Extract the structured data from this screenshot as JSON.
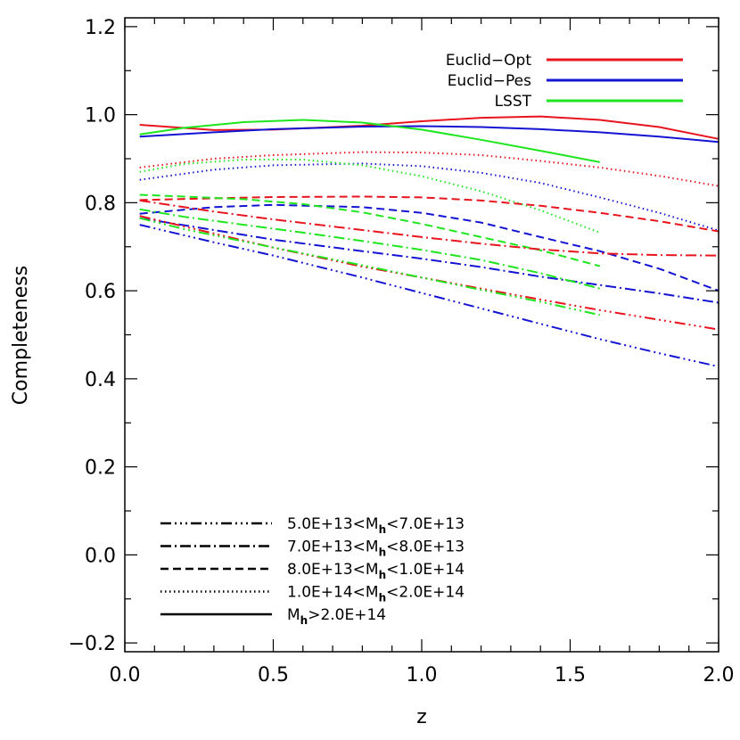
{
  "chart_data": {
    "type": "line",
    "xlabel": "z",
    "ylabel": "Completeness",
    "xlim": [
      0.0,
      2.0
    ],
    "ylim": [
      -0.22,
      1.22
    ],
    "xticks": [
      0.0,
      0.5,
      1.0,
      1.5,
      2.0
    ],
    "xtick_labels": [
      "0.0",
      "0.5",
      "1.0",
      "1.5",
      "2.0"
    ],
    "yticks": [
      -0.2,
      0.0,
      0.2,
      0.4,
      0.6,
      0.8,
      1.0,
      1.2
    ],
    "ytick_labels": [
      "−0.2",
      "0.0",
      "0.2",
      "0.4",
      "0.6",
      "0.8",
      "1.0",
      "1.2"
    ],
    "grid": false,
    "survey_legend": {
      "placement": "top-right",
      "entries": [
        {
          "label": "Euclid−Opt",
          "color": "#e8141e"
        },
        {
          "label": "Euclid−Pes",
          "color": "#1414d2"
        },
        {
          "label": "LSST",
          "color": "#1ee61e"
        }
      ]
    },
    "mass_legend": {
      "placement": "bottom-left",
      "entries": [
        {
          "label_parts": [
            "5.0E+13<M",
            "h",
            "<7.0E+13"
          ],
          "dash": "dash-dot-dot-dot"
        },
        {
          "label_parts": [
            "7.0E+13<M",
            "h",
            "<8.0E+13"
          ],
          "dash": "dash-dot"
        },
        {
          "label_parts": [
            "8.0E+13<M",
            "h",
            "<1.0E+14"
          ],
          "dash": "dashed"
        },
        {
          "label_parts": [
            "1.0E+14<M",
            "h",
            "<2.0E+14"
          ],
          "dash": "dotted"
        },
        {
          "label_parts": [
            "M",
            "h",
            ">2.0E+14"
          ],
          "dash": "solid"
        }
      ]
    },
    "series": [
      {
        "survey": "Euclid-Opt",
        "mass_bin": 4,
        "x": [
          0.05,
          0.3,
          0.5,
          0.8,
          1.0,
          1.2,
          1.4,
          1.6,
          1.8,
          2.0
        ],
        "y": [
          0.977,
          0.965,
          0.966,
          0.975,
          0.985,
          0.993,
          0.996,
          0.988,
          0.972,
          0.945
        ]
      },
      {
        "survey": "Euclid-Pes",
        "mass_bin": 4,
        "x": [
          0.05,
          0.3,
          0.5,
          0.8,
          1.0,
          1.2,
          1.4,
          1.6,
          1.8,
          2.0
        ],
        "y": [
          0.95,
          0.96,
          0.967,
          0.973,
          0.974,
          0.972,
          0.967,
          0.96,
          0.95,
          0.938
        ]
      },
      {
        "survey": "LSST",
        "mass_bin": 4,
        "x": [
          0.05,
          0.2,
          0.4,
          0.6,
          0.8,
          1.0,
          1.2,
          1.4,
          1.6
        ],
        "y": [
          0.955,
          0.97,
          0.983,
          0.988,
          0.982,
          0.966,
          0.943,
          0.918,
          0.892
        ]
      },
      {
        "survey": "Euclid-Opt",
        "mass_bin": 3,
        "x": [
          0.05,
          0.3,
          0.5,
          0.8,
          1.0,
          1.2,
          1.4,
          1.6,
          1.8,
          2.0
        ],
        "y": [
          0.88,
          0.9,
          0.908,
          0.915,
          0.914,
          0.908,
          0.895,
          0.88,
          0.861,
          0.838
        ]
      },
      {
        "survey": "Euclid-Pes",
        "mass_bin": 3,
        "x": [
          0.05,
          0.3,
          0.5,
          0.8,
          1.0,
          1.2,
          1.4,
          1.6,
          1.8,
          2.0
        ],
        "y": [
          0.852,
          0.875,
          0.885,
          0.889,
          0.883,
          0.868,
          0.845,
          0.812,
          0.777,
          0.737
        ]
      },
      {
        "survey": "LSST",
        "mass_bin": 3,
        "x": [
          0.05,
          0.2,
          0.4,
          0.6,
          0.8,
          1.0,
          1.2,
          1.4,
          1.6
        ],
        "y": [
          0.87,
          0.888,
          0.898,
          0.898,
          0.885,
          0.86,
          0.826,
          0.783,
          0.732
        ]
      },
      {
        "survey": "Euclid-Opt",
        "mass_bin": 2,
        "x": [
          0.05,
          0.3,
          0.5,
          0.8,
          1.0,
          1.2,
          1.4,
          1.6,
          1.8,
          2.0
        ],
        "y": [
          0.806,
          0.81,
          0.813,
          0.814,
          0.812,
          0.805,
          0.793,
          0.777,
          0.758,
          0.735
        ]
      },
      {
        "survey": "Euclid-Pes",
        "mass_bin": 2,
        "x": [
          0.05,
          0.3,
          0.5,
          0.8,
          1.0,
          1.2,
          1.4,
          1.6,
          1.8,
          2.0
        ],
        "y": [
          0.775,
          0.79,
          0.795,
          0.79,
          0.777,
          0.755,
          0.722,
          0.69,
          0.65,
          0.6
        ]
      },
      {
        "survey": "LSST",
        "mass_bin": 2,
        "x": [
          0.05,
          0.2,
          0.4,
          0.6,
          0.8,
          1.0,
          1.2,
          1.4,
          1.6
        ],
        "y": [
          0.818,
          0.814,
          0.808,
          0.797,
          0.778,
          0.752,
          0.722,
          0.692,
          0.656
        ]
      },
      {
        "survey": "Euclid-Opt",
        "mass_bin": 1,
        "x": [
          0.05,
          0.3,
          0.5,
          0.8,
          1.0,
          1.2,
          1.4,
          1.6,
          1.8,
          2.0
        ],
        "y": [
          0.805,
          0.78,
          0.762,
          0.738,
          0.722,
          0.707,
          0.694,
          0.685,
          0.681,
          0.68
        ]
      },
      {
        "survey": "Euclid-Pes",
        "mass_bin": 1,
        "x": [
          0.05,
          0.3,
          0.5,
          0.8,
          1.0,
          1.2,
          1.4,
          1.6,
          1.8,
          2.0
        ],
        "y": [
          0.765,
          0.738,
          0.716,
          0.69,
          0.673,
          0.654,
          0.632,
          0.613,
          0.594,
          0.573
        ]
      },
      {
        "survey": "LSST",
        "mass_bin": 1,
        "x": [
          0.05,
          0.2,
          0.4,
          0.6,
          0.8,
          1.0,
          1.2,
          1.4,
          1.6
        ],
        "y": [
          0.785,
          0.768,
          0.75,
          0.732,
          0.713,
          0.693,
          0.67,
          0.64,
          0.605
        ]
      },
      {
        "survey": "Euclid-Opt",
        "mass_bin": 0,
        "x": [
          0.05,
          0.3,
          0.5,
          0.8,
          1.0,
          1.2,
          1.4,
          1.6,
          1.8,
          2.0
        ],
        "y": [
          0.77,
          0.73,
          0.698,
          0.655,
          0.63,
          0.605,
          0.58,
          0.556,
          0.534,
          0.512
        ]
      },
      {
        "survey": "Euclid-Pes",
        "mass_bin": 0,
        "x": [
          0.05,
          0.3,
          0.5,
          0.8,
          1.0,
          1.2,
          1.4,
          1.6,
          1.8,
          2.0
        ],
        "y": [
          0.75,
          0.71,
          0.68,
          0.63,
          0.595,
          0.56,
          0.525,
          0.49,
          0.458,
          0.428
        ]
      },
      {
        "survey": "LSST",
        "mass_bin": 0,
        "x": [
          0.05,
          0.2,
          0.4,
          0.6,
          0.8,
          1.0,
          1.2,
          1.4,
          1.6
        ],
        "y": [
          0.765,
          0.74,
          0.712,
          0.685,
          0.658,
          0.63,
          0.602,
          0.575,
          0.545
        ]
      }
    ]
  }
}
